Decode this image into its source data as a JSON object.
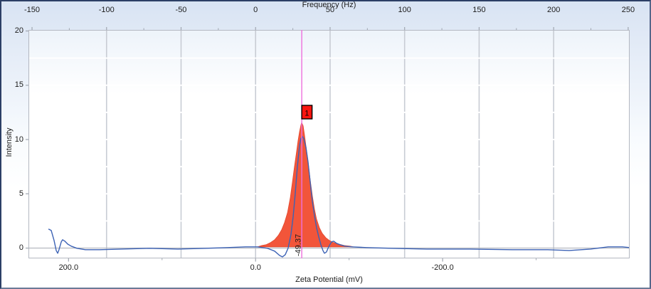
{
  "chart_data": {
    "type": "area+line",
    "title_top": "Frequency (Hz)",
    "xlabel_bottom": "Zeta Potential (mV)",
    "ylabel": "Intensity",
    "x_top_ticks": [
      -150,
      -100,
      -50,
      0,
      50,
      100,
      150,
      200,
      250
    ],
    "xlim_hz": [
      -152.4,
      251.0
    ],
    "y_ticks": [
      20,
      15,
      10,
      5,
      0
    ],
    "ylim": [
      -0.95,
      20.1
    ],
    "grid_hz": [
      -100,
      -50,
      0,
      50,
      100,
      150,
      200
    ],
    "zeta_per_hz": -1.5936,
    "bottom_ticks": [
      {
        "label": "200.0",
        "zeta": 200
      },
      {
        "label": "0.0",
        "zeta": 0
      },
      {
        "label": "-200.0",
        "zeta": -200
      }
    ],
    "bottom_minor_zeta": [
      100,
      -100,
      -300
    ],
    "colors": {
      "grid": "#c8ccd4",
      "zero_line": "#b4b8c0",
      "plot_border": "#b4b8c1",
      "tick": "#a0a6b0",
      "spectrum_blue": "#3c62b5",
      "peak_fill": "#f2553a",
      "peak_edge": "#e2492e",
      "cursor_magenta": "#ee70dd",
      "marker_red": "#fa1510",
      "marker_border": "#000000",
      "text": "#1c1c1c"
    },
    "series": [
      {
        "name": "fitted-peak-distribution",
        "style": "area",
        "points_hz_intensity": [
          [
            1.3,
            0.11
          ],
          [
            4.2,
            0.24
          ],
          [
            7.0,
            0.31
          ],
          [
            9.9,
            0.5
          ],
          [
            12.8,
            0.77
          ],
          [
            15.2,
            1.16
          ],
          [
            17.5,
            1.69
          ],
          [
            19.4,
            2.34
          ],
          [
            21.4,
            3.26
          ],
          [
            23.3,
            4.64
          ],
          [
            24.7,
            6.08
          ],
          [
            26.1,
            7.52
          ],
          [
            27.6,
            8.96
          ],
          [
            28.5,
            9.88
          ],
          [
            29.5,
            10.73
          ],
          [
            30.4,
            11.32
          ],
          [
            30.9,
            11.59
          ],
          [
            31.9,
            11.26
          ],
          [
            32.8,
            10.47
          ],
          [
            33.8,
            9.42
          ],
          [
            35.2,
            7.92
          ],
          [
            36.6,
            6.34
          ],
          [
            38.1,
            4.83
          ],
          [
            39.5,
            3.59
          ],
          [
            40.9,
            2.67
          ],
          [
            42.8,
            1.88
          ],
          [
            44.7,
            1.36
          ],
          [
            47.1,
            0.96
          ],
          [
            49.5,
            0.7
          ],
          [
            52.4,
            0.5
          ],
          [
            55.7,
            0.37
          ],
          [
            59.5,
            0.24
          ],
          [
            63.4,
            0.18
          ],
          [
            65.7,
            0.11
          ]
        ]
      },
      {
        "name": "frequency-spectrum",
        "style": "line",
        "points_hz_intensity": [
          [
            -139.0,
            1.75
          ],
          [
            -137.1,
            1.62
          ],
          [
            -135.2,
            0.7
          ],
          [
            -133.8,
            -0.22
          ],
          [
            -132.8,
            -0.48
          ],
          [
            -131.9,
            -0.15
          ],
          [
            -130.4,
            0.57
          ],
          [
            -129.5,
            0.77
          ],
          [
            -128.0,
            0.64
          ],
          [
            -126.1,
            0.37
          ],
          [
            -123.7,
            0.18
          ],
          [
            -119.9,
            -0.02
          ],
          [
            -114.2,
            -0.15
          ],
          [
            -104.7,
            -0.15
          ],
          [
            -90.3,
            -0.09
          ],
          [
            -71.2,
            -0.02
          ],
          [
            -52.1,
            -0.09
          ],
          [
            -33.1,
            -0.02
          ],
          [
            -18.7,
            0.05
          ],
          [
            -6.8,
            0.11
          ],
          [
            1.3,
            0.11
          ],
          [
            8.0,
            -0.02
          ],
          [
            12.8,
            -0.28
          ],
          [
            16.1,
            -0.68
          ],
          [
            18.0,
            -0.81
          ],
          [
            19.9,
            -0.61
          ],
          [
            21.8,
            -0.02
          ],
          [
            23.7,
            1.23
          ],
          [
            25.2,
            2.87
          ],
          [
            26.6,
            5.03
          ],
          [
            28.0,
            7.46
          ],
          [
            29.5,
            9.42
          ],
          [
            30.4,
            10.08
          ],
          [
            31.4,
            10.28
          ],
          [
            32.3,
            10.08
          ],
          [
            33.8,
            9.29
          ],
          [
            35.2,
            7.92
          ],
          [
            36.6,
            6.14
          ],
          [
            38.1,
            4.31
          ],
          [
            39.5,
            3.0
          ],
          [
            40.9,
            1.88
          ],
          [
            42.4,
            1.03
          ],
          [
            43.8,
            0.31
          ],
          [
            45.2,
            -0.22
          ],
          [
            46.2,
            -0.48
          ],
          [
            47.6,
            -0.35
          ],
          [
            49.0,
            0.11
          ],
          [
            50.9,
            0.57
          ],
          [
            52.4,
            0.64
          ],
          [
            54.3,
            0.44
          ],
          [
            56.7,
            0.31
          ],
          [
            60.0,
            0.18
          ],
          [
            64.8,
            0.11
          ],
          [
            74.3,
            0.05
          ],
          [
            91.0,
            -0.02
          ],
          [
            114.9,
            -0.09
          ],
          [
            143.6,
            -0.09
          ],
          [
            172.2,
            -0.15
          ],
          [
            196.1,
            -0.15
          ],
          [
            210.4,
            -0.22
          ],
          [
            224.7,
            -0.09
          ],
          [
            236.6,
            0.11
          ],
          [
            246.1,
            0.11
          ],
          [
            251.0,
            0.05
          ]
        ]
      }
    ],
    "cursor": {
      "freq_hz": 30.98,
      "zeta_mv": -49.37,
      "annotation": "-49.37"
    },
    "peak_marker": {
      "label": "1"
    },
    "legend": "none",
    "grid": "vertical-major"
  }
}
